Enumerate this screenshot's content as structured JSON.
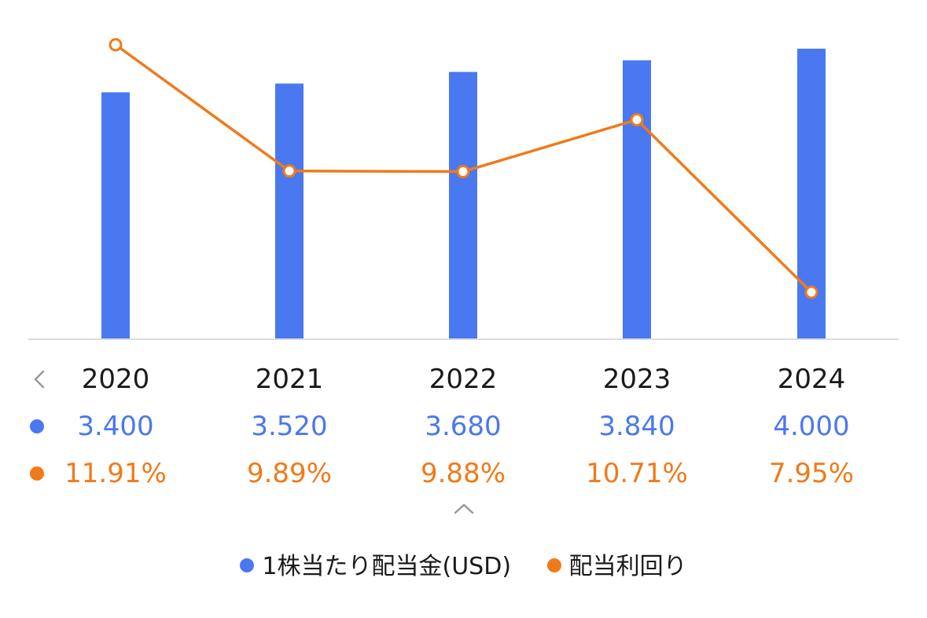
{
  "colors": {
    "bar": "#4a78f0",
    "line": "#f07a1a",
    "axis": "#dddddd",
    "year_text": "#1a1a1a"
  },
  "icons": {
    "prev": "chevron-left-icon",
    "expand": "chevron-up-icon"
  },
  "chart_data": {
    "type": "bar",
    "categories": [
      "2020",
      "2021",
      "2022",
      "2023",
      "2024"
    ],
    "series": [
      {
        "name": "1株当たり配当金(USD)",
        "type": "bar",
        "values": [
          3.4,
          3.52,
          3.68,
          3.84,
          4.0
        ],
        "labels": [
          "3.400",
          "3.520",
          "3.680",
          "3.840",
          "4.000"
        ]
      },
      {
        "name": "配当利回り",
        "type": "line",
        "values": [
          11.91,
          9.89,
          9.88,
          10.71,
          7.95
        ],
        "labels": [
          "11.91%",
          "9.89%",
          "9.88%",
          "10.71%",
          "7.95%"
        ]
      }
    ],
    "bar_ylim": [
      0,
      4.0
    ],
    "line_ylim": [
      7.6,
      11.91
    ],
    "title": "",
    "xlabel": "",
    "ylabel": "",
    "grid": false,
    "legend": "bottom-center"
  }
}
